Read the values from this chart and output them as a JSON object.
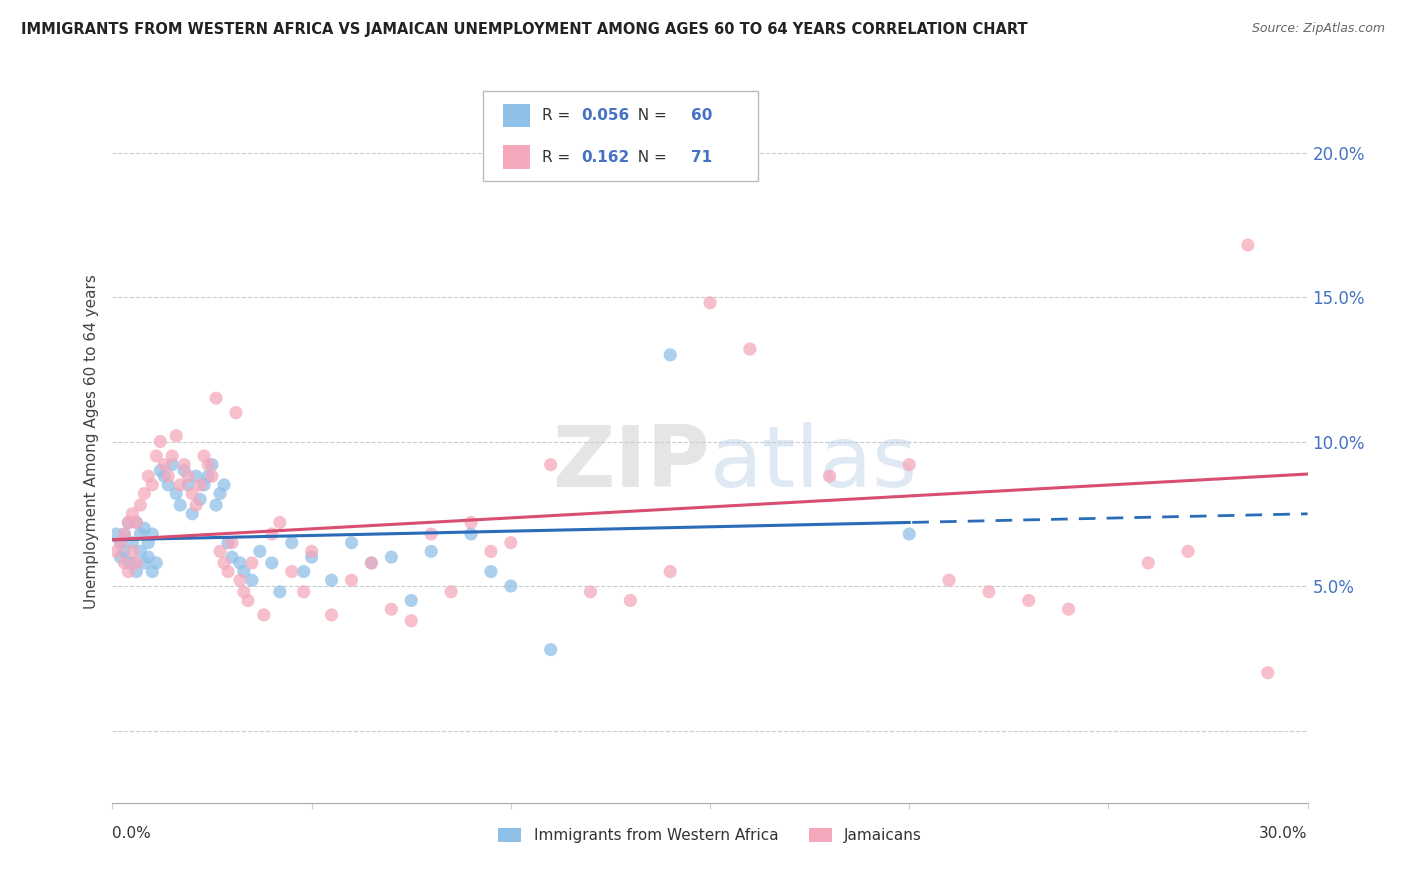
{
  "title": "IMMIGRANTS FROM WESTERN AFRICA VS JAMAICAN UNEMPLOYMENT AMONG AGES 60 TO 64 YEARS CORRELATION CHART",
  "source": "Source: ZipAtlas.com",
  "ylabel": "Unemployment Among Ages 60 to 64 years",
  "ylabel_right_ticks": [
    "5.0%",
    "10.0%",
    "15.0%",
    "20.0%"
  ],
  "ylabel_right_vals": [
    0.05,
    0.1,
    0.15,
    0.2
  ],
  "xlim": [
    0.0,
    0.3
  ],
  "ylim": [
    -0.025,
    0.225
  ],
  "blue_R": "0.056",
  "blue_N": "60",
  "pink_R": "0.162",
  "pink_N": "71",
  "legend_label_blue": "Immigrants from Western Africa",
  "legend_label_pink": "Jamaicans",
  "blue_color": "#8fc0e8",
  "pink_color": "#f5a8bc",
  "trendline_blue_color": "#2b6cb8",
  "trendline_pink_color": "#d94f72",
  "blue_x": [
    0.001,
    0.002,
    0.002,
    0.003,
    0.003,
    0.004,
    0.004,
    0.005,
    0.005,
    0.006,
    0.006,
    0.007,
    0.007,
    0.008,
    0.008,
    0.009,
    0.009,
    0.01,
    0.01,
    0.011,
    0.012,
    0.013,
    0.014,
    0.015,
    0.016,
    0.017,
    0.018,
    0.019,
    0.02,
    0.021,
    0.022,
    0.023,
    0.024,
    0.025,
    0.026,
    0.027,
    0.028,
    0.029,
    0.03,
    0.032,
    0.033,
    0.035,
    0.037,
    0.04,
    0.042,
    0.045,
    0.048,
    0.05,
    0.055,
    0.06,
    0.065,
    0.07,
    0.075,
    0.08,
    0.09,
    0.095,
    0.1,
    0.11,
    0.14,
    0.2
  ],
  "blue_y": [
    0.068,
    0.065,
    0.06,
    0.068,
    0.062,
    0.058,
    0.072,
    0.065,
    0.058,
    0.072,
    0.055,
    0.068,
    0.062,
    0.07,
    0.058,
    0.065,
    0.06,
    0.068,
    0.055,
    0.058,
    0.09,
    0.088,
    0.085,
    0.092,
    0.082,
    0.078,
    0.09,
    0.085,
    0.075,
    0.088,
    0.08,
    0.085,
    0.088,
    0.092,
    0.078,
    0.082,
    0.085,
    0.065,
    0.06,
    0.058,
    0.055,
    0.052,
    0.062,
    0.058,
    0.048,
    0.065,
    0.055,
    0.06,
    0.052,
    0.065,
    0.058,
    0.06,
    0.045,
    0.062,
    0.068,
    0.055,
    0.05,
    0.028,
    0.13,
    0.068
  ],
  "pink_x": [
    0.001,
    0.002,
    0.003,
    0.003,
    0.004,
    0.004,
    0.005,
    0.005,
    0.006,
    0.006,
    0.007,
    0.008,
    0.009,
    0.01,
    0.011,
    0.012,
    0.013,
    0.014,
    0.015,
    0.016,
    0.017,
    0.018,
    0.019,
    0.02,
    0.021,
    0.022,
    0.023,
    0.024,
    0.025,
    0.026,
    0.027,
    0.028,
    0.029,
    0.03,
    0.031,
    0.032,
    0.033,
    0.034,
    0.035,
    0.038,
    0.04,
    0.042,
    0.045,
    0.048,
    0.05,
    0.055,
    0.06,
    0.065,
    0.07,
    0.075,
    0.08,
    0.085,
    0.09,
    0.095,
    0.1,
    0.11,
    0.12,
    0.13,
    0.14,
    0.15,
    0.16,
    0.18,
    0.2,
    0.21,
    0.22,
    0.23,
    0.24,
    0.26,
    0.27,
    0.285,
    0.29
  ],
  "pink_y": [
    0.062,
    0.065,
    0.068,
    0.058,
    0.072,
    0.055,
    0.075,
    0.062,
    0.058,
    0.072,
    0.078,
    0.082,
    0.088,
    0.085,
    0.095,
    0.1,
    0.092,
    0.088,
    0.095,
    0.102,
    0.085,
    0.092,
    0.088,
    0.082,
    0.078,
    0.085,
    0.095,
    0.092,
    0.088,
    0.115,
    0.062,
    0.058,
    0.055,
    0.065,
    0.11,
    0.052,
    0.048,
    0.045,
    0.058,
    0.04,
    0.068,
    0.072,
    0.055,
    0.048,
    0.062,
    0.04,
    0.052,
    0.058,
    0.042,
    0.038,
    0.068,
    0.048,
    0.072,
    0.062,
    0.065,
    0.092,
    0.048,
    0.045,
    0.055,
    0.148,
    0.132,
    0.088,
    0.092,
    0.052,
    0.048,
    0.045,
    0.042,
    0.058,
    0.062,
    0.168,
    0.02
  ]
}
